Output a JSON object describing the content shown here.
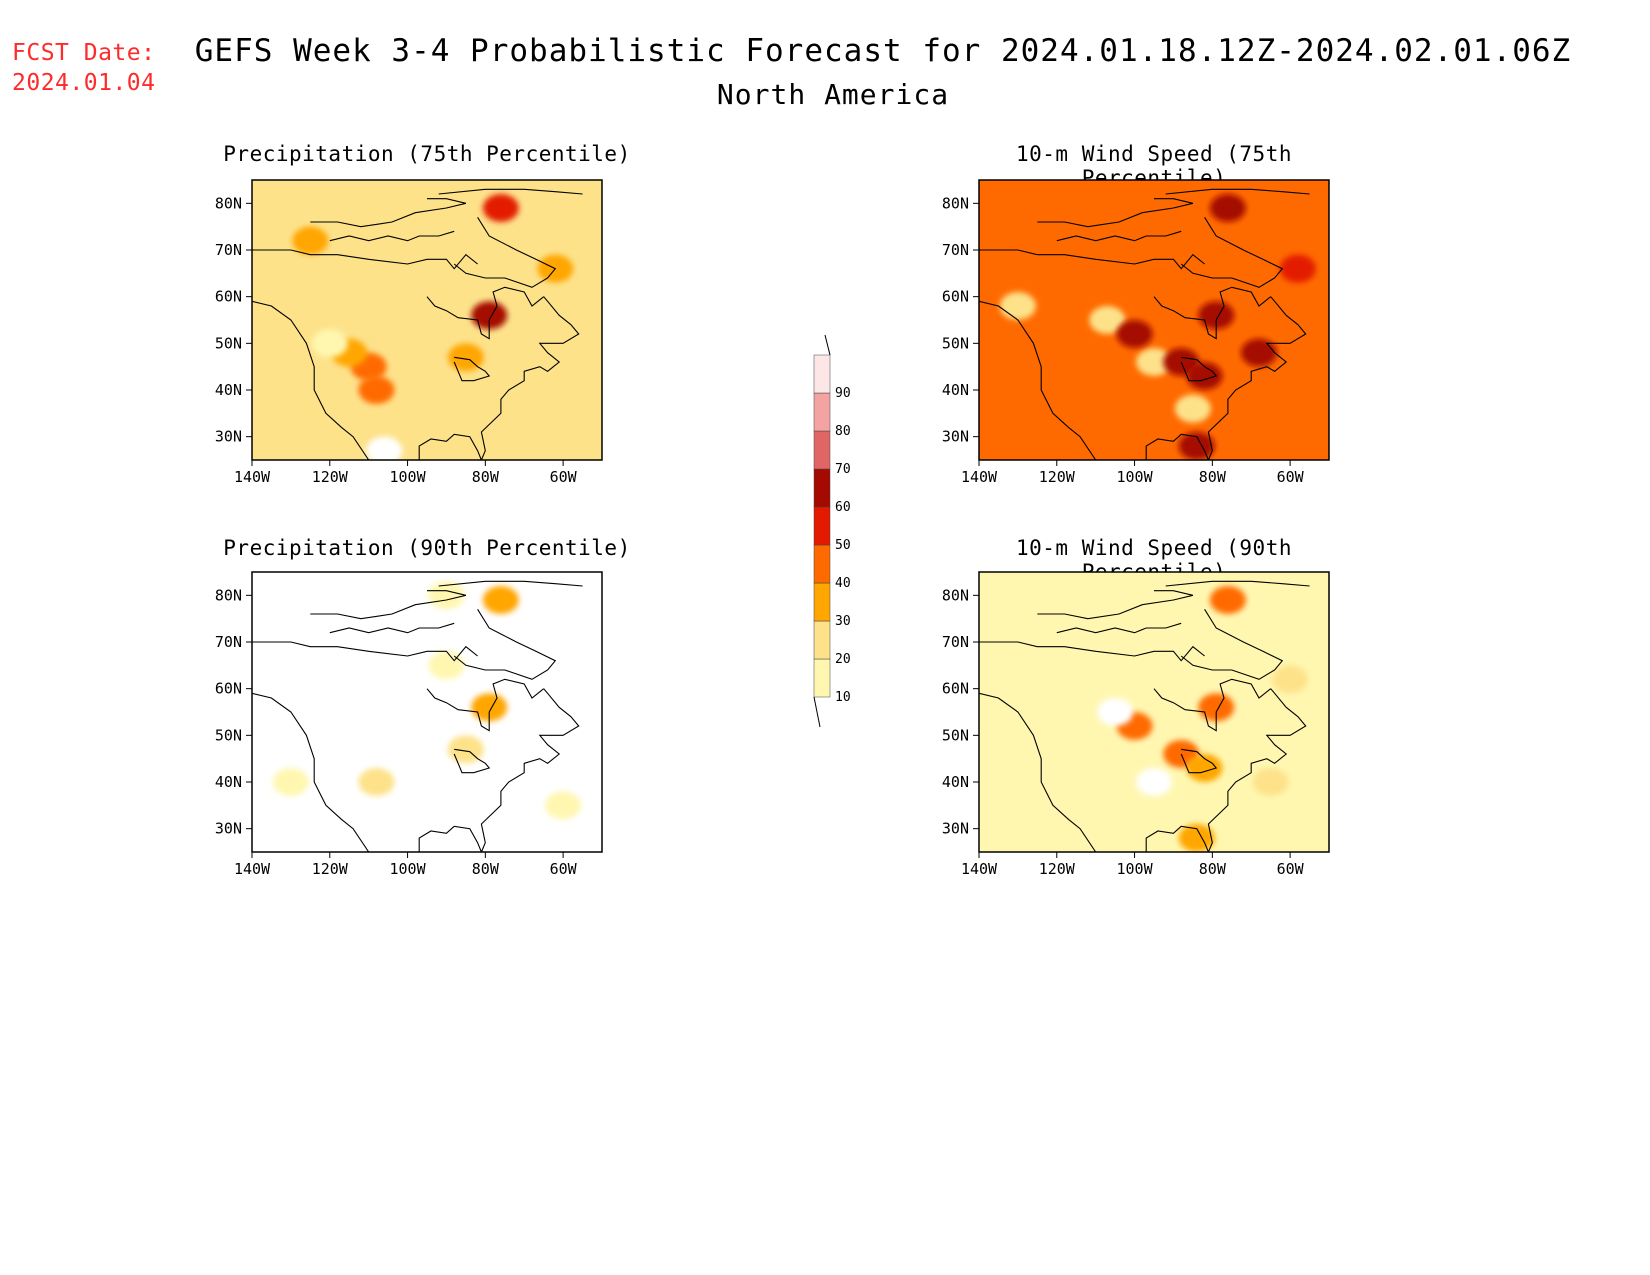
{
  "header": {
    "fcst_label": "FCST Date:",
    "fcst_date": "2024.01.04",
    "title": "GEFS Week 3-4 Probabilistic Forecast for 2024.01.18.12Z-2024.02.01.06Z",
    "region": "North America"
  },
  "axes": {
    "lat_ticks": [
      "30N",
      "40N",
      "50N",
      "60N",
      "70N",
      "80N"
    ],
    "lon_ticks": [
      "140W",
      "120W",
      "100W",
      "80W",
      "60W"
    ]
  },
  "panels": [
    {
      "title": "Precipitation (75th Percentile)",
      "base_level": 20
    },
    {
      "title": "10-m Wind Speed (75th Percentile)",
      "base_level": 40
    },
    {
      "title": "Precipitation (90th Percentile)",
      "base_level": 0
    },
    {
      "title": "10-m Wind Speed (90th Percentile)",
      "base_level": 10
    }
  ],
  "colorbar": {
    "levels": [
      "10",
      "20",
      "30",
      "40",
      "50",
      "60",
      "70",
      "80",
      "90"
    ],
    "colors": [
      "#ffffff",
      "#fff7b0",
      "#fde28a",
      "#ffa600",
      "#ff6a00",
      "#e31a00",
      "#a50a00",
      "#e06666",
      "#f4a3a3",
      "#fde6e6"
    ]
  },
  "chart_data": {
    "type": "heatmap",
    "units": "probability (%)",
    "lon_range": [
      -140,
      -50
    ],
    "lat_range": [
      25,
      85
    ],
    "lon_ticks": [
      "140W",
      "120W",
      "100W",
      "80W",
      "60W"
    ],
    "lat_ticks": [
      "30N",
      "40N",
      "50N",
      "60N",
      "70N",
      "80N"
    ],
    "levels": [
      10,
      20,
      30,
      40,
      50,
      60,
      70,
      80,
      90
    ],
    "panels": [
      {
        "name": "Precipitation (75th Percentile)",
        "background_level": 20,
        "patches": [
          {
            "lon": -76,
            "lat": 79,
            "level": 50
          },
          {
            "lon": -79,
            "lat": 56,
            "level": 60
          },
          {
            "lon": -110,
            "lat": 45,
            "level": 40
          },
          {
            "lon": -108,
            "lat": 40,
            "level": 40
          },
          {
            "lon": -115,
            "lat": 48,
            "level": 30
          },
          {
            "lon": -85,
            "lat": 47,
            "level": 30
          },
          {
            "lon": -62,
            "lat": 66,
            "level": 30
          },
          {
            "lon": -120,
            "lat": 50,
            "level": 10
          },
          {
            "lon": -106,
            "lat": 27,
            "level": 0
          },
          {
            "lon": -125,
            "lat": 72,
            "level": 30
          }
        ]
      },
      {
        "name": "10-m Wind Speed (75th Percentile)",
        "background_level": 40,
        "patches": [
          {
            "lon": -107,
            "lat": 55,
            "level": 20
          },
          {
            "lon": -95,
            "lat": 46,
            "level": 20
          },
          {
            "lon": -88,
            "lat": 46,
            "level": 60
          },
          {
            "lon": -82,
            "lat": 43,
            "level": 60
          },
          {
            "lon": -79,
            "lat": 56,
            "level": 60
          },
          {
            "lon": -68,
            "lat": 48,
            "level": 60
          },
          {
            "lon": -100,
            "lat": 52,
            "level": 60
          },
          {
            "lon": -84,
            "lat": 28,
            "level": 60
          },
          {
            "lon": -76,
            "lat": 79,
            "level": 60
          },
          {
            "lon": -58,
            "lat": 66,
            "level": 50
          },
          {
            "lon": -85,
            "lat": 36,
            "level": 20
          },
          {
            "lon": -130,
            "lat": 58,
            "level": 20
          }
        ]
      },
      {
        "name": "Precipitation (90th Percentile)",
        "background_level": 0,
        "patches": [
          {
            "lon": -130,
            "lat": 40,
            "level": 10
          },
          {
            "lon": -60,
            "lat": 35,
            "level": 10
          },
          {
            "lon": -90,
            "lat": 80,
            "level": 10
          },
          {
            "lon": -76,
            "lat": 79,
            "level": 30
          },
          {
            "lon": -79,
            "lat": 56,
            "level": 30
          },
          {
            "lon": -108,
            "lat": 40,
            "level": 20
          },
          {
            "lon": -85,
            "lat": 47,
            "level": 20
          },
          {
            "lon": -90,
            "lat": 65,
            "level": 10
          }
        ]
      },
      {
        "name": "10-m Wind Speed (90th Percentile)",
        "background_level": 10,
        "patches": [
          {
            "lon": -76,
            "lat": 79,
            "level": 40
          },
          {
            "lon": -79,
            "lat": 56,
            "level": 40
          },
          {
            "lon": -88,
            "lat": 46,
            "level": 40
          },
          {
            "lon": -82,
            "lat": 43,
            "level": 30
          },
          {
            "lon": -100,
            "lat": 52,
            "level": 40
          },
          {
            "lon": -60,
            "lat": 62,
            "level": 20
          },
          {
            "lon": -65,
            "lat": 40,
            "level": 20
          },
          {
            "lon": -105,
            "lat": 55,
            "level": 0
          },
          {
            "lon": -95,
            "lat": 40,
            "level": 0
          },
          {
            "lon": -84,
            "lat": 28,
            "level": 30
          }
        ]
      }
    ]
  }
}
